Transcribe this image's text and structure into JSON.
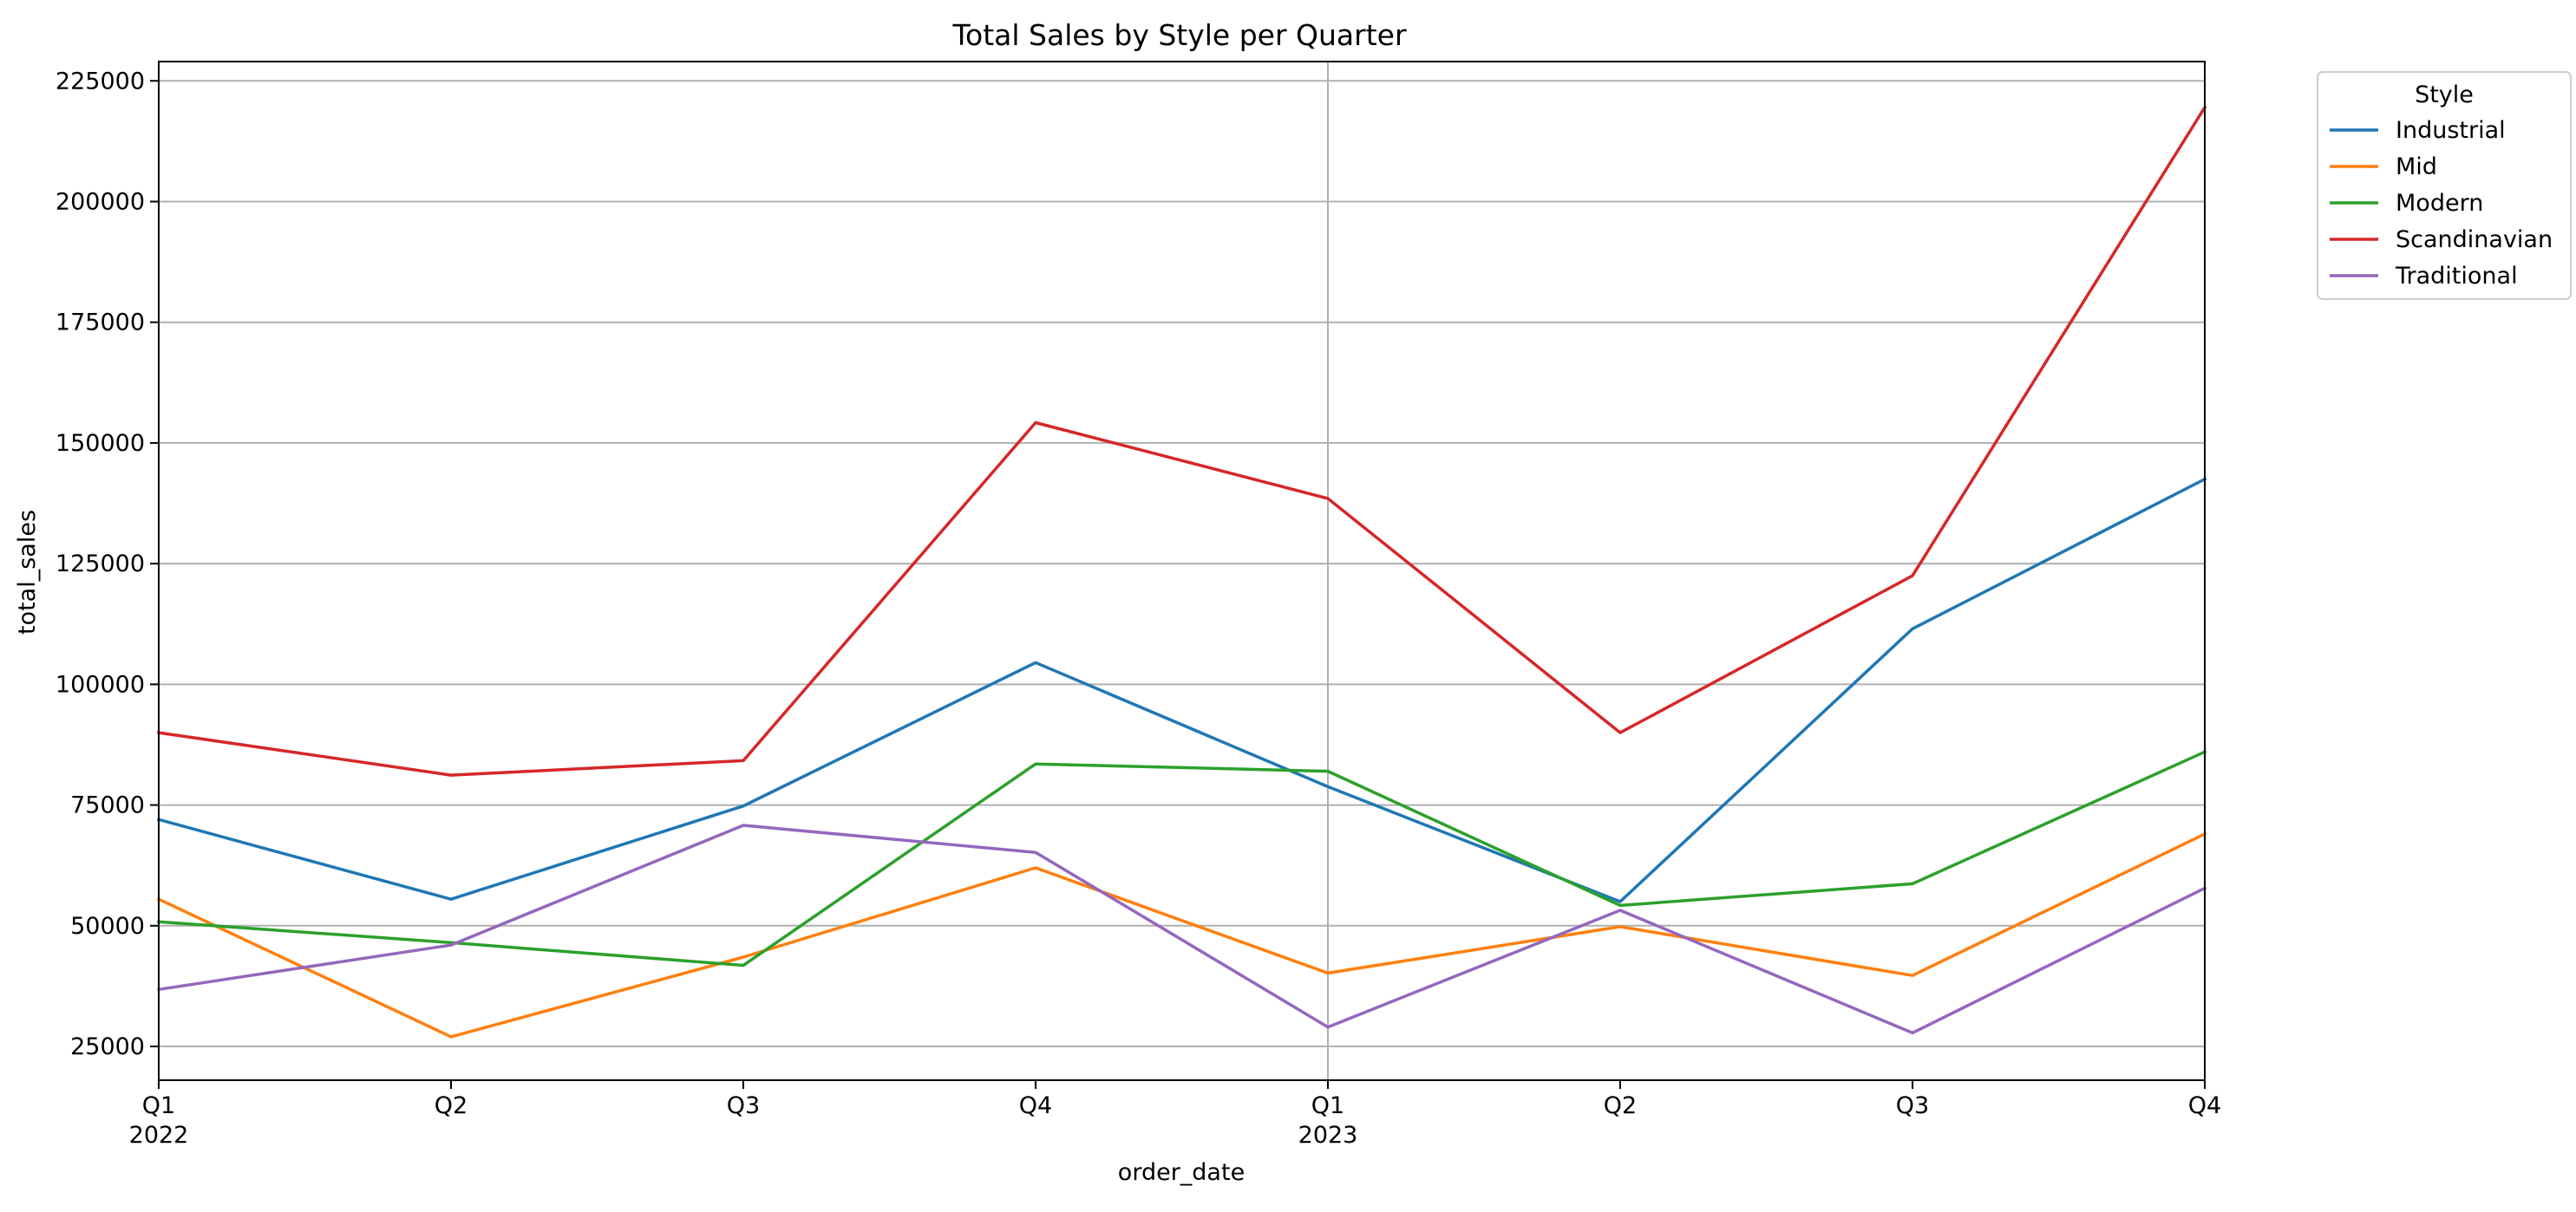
{
  "chart_data": {
    "type": "line",
    "title": "Total Sales by Style per Quarter",
    "xlabel": "order_date",
    "ylabel": "total_sales",
    "categories": [
      "Q1",
      "Q2",
      "Q3",
      "Q4",
      "Q1",
      "Q2",
      "Q3",
      "Q4"
    ],
    "year_labels": [
      {
        "index": 0,
        "label": "2022"
      },
      {
        "index": 4,
        "label": "2023"
      }
    ],
    "ylim": [
      18000,
      229000
    ],
    "yticks": [
      25000,
      50000,
      75000,
      100000,
      125000,
      150000,
      175000,
      200000,
      225000
    ],
    "grid": true,
    "vertical_gridline_at_index": 4,
    "legend": {
      "title": "Style",
      "placement": "outside-top-right"
    },
    "series": [
      {
        "name": "Industrial",
        "color": "#1f77b4",
        "values": [
          72000,
          55500,
          74800,
          104500,
          78800,
          55000,
          111500,
          142500
        ]
      },
      {
        "name": "Mid",
        "color": "#ff7f0e",
        "values": [
          55500,
          27000,
          43500,
          62000,
          40200,
          49800,
          39700,
          69000
        ]
      },
      {
        "name": "Modern",
        "color": "#2ca02c",
        "values": [
          50800,
          46500,
          41800,
          83500,
          82000,
          54200,
          58700,
          86000
        ]
      },
      {
        "name": "Scandinavian",
        "color": "#d62728",
        "values": [
          90000,
          81200,
          84200,
          154200,
          138500,
          90000,
          122500,
          219500
        ]
      },
      {
        "name": "Traditional",
        "color": "#9467bd",
        "values": [
          36800,
          46000,
          70800,
          65200,
          29000,
          53200,
          27800,
          57800
        ]
      }
    ]
  }
}
